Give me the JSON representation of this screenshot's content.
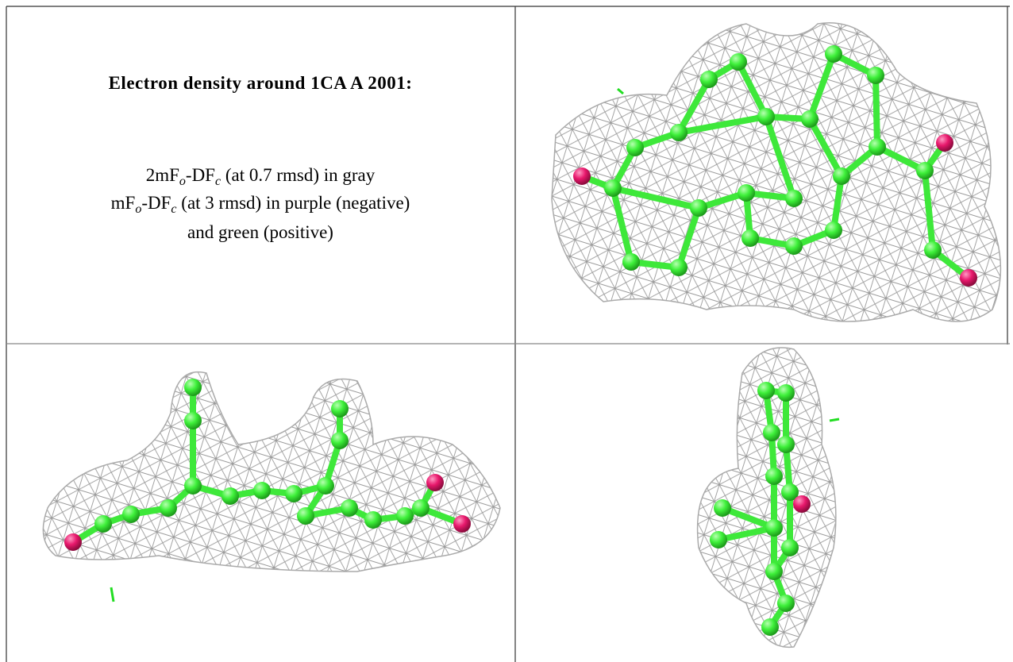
{
  "title": "Electron density around 1CA A 2001:",
  "legend": [
    [
      "2mF",
      "o",
      "-DF",
      "c",
      " (at 0.7 rmsd) in gray"
    ],
    [
      "mF",
      "o",
      "-DF",
      "c",
      " (at 3 rmsd) in purple (negative)"
    ],
    [
      "and green (positive)"
    ]
  ]
}
